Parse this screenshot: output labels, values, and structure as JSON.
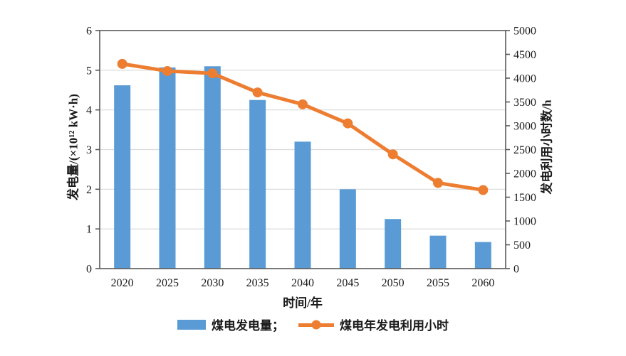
{
  "figure": {
    "background": "#ffffff",
    "axis_line_color": "#595959",
    "gridline_color": "#d9d9d9",
    "text_color": "#1a1a1a"
  },
  "chart_data": {
    "type": "combo-bar-line",
    "title": "",
    "categories": [
      "2020",
      "2025",
      "2030",
      "2035",
      "2040",
      "2045",
      "2050",
      "2055",
      "2060"
    ],
    "series": [
      {
        "name": "煤电发电量",
        "type": "bar",
        "axis": "left",
        "color": "#5B9BD5",
        "values": [
          4.62,
          5.07,
          5.1,
          4.25,
          3.2,
          2.0,
          1.25,
          0.83,
          0.67
        ]
      },
      {
        "name": "煤电年发电利用小时",
        "type": "line",
        "axis": "right",
        "color": "#ED7D31",
        "values": [
          4300,
          4150,
          4100,
          3700,
          3450,
          3050,
          2400,
          1800,
          1650
        ]
      }
    ],
    "x_axis": {
      "label": "时间/年"
    },
    "left_axis": {
      "label": "发电量/(×10¹² kW·h)",
      "min": 0,
      "max": 6,
      "ticks": [
        0,
        1,
        2,
        3,
        4,
        5,
        6
      ]
    },
    "right_axis": {
      "label": "发电利用小时数/h",
      "min": 0,
      "max": 5000,
      "ticks": [
        0,
        500,
        1000,
        1500,
        2000,
        2500,
        3000,
        3500,
        4000,
        4500,
        5000
      ]
    },
    "grid": {
      "values": [
        1,
        2,
        3,
        4,
        5
      ]
    },
    "legend_position": "bottom"
  },
  "legend": {
    "items": [
      {
        "label": "煤电发电量；",
        "swatch": "bar",
        "color": "#5B9BD5"
      },
      {
        "label": "煤电年发电利用小时",
        "swatch": "line",
        "color": "#ED7D31"
      }
    ]
  }
}
